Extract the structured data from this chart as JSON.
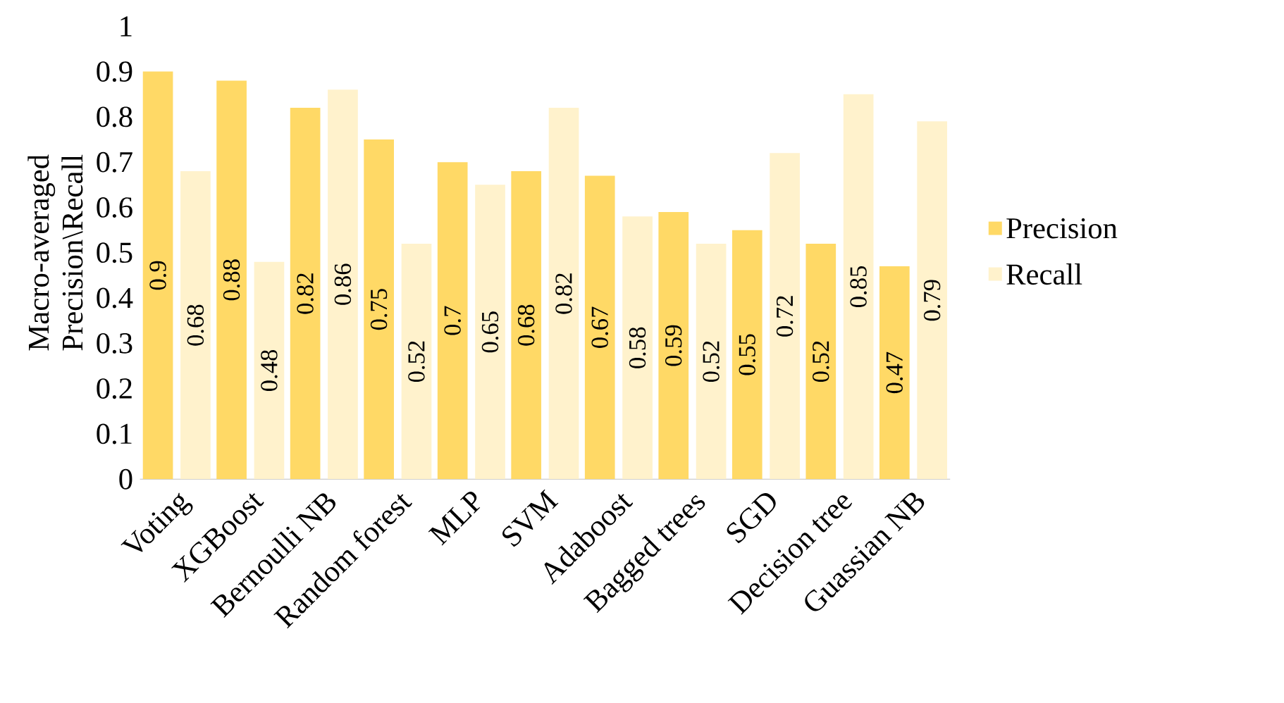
{
  "chart_data": {
    "type": "bar",
    "ylabel": "Macro-averaged Precision\\Recall",
    "categories": [
      "Voting",
      "XGBoost",
      "Bernoulli NB",
      "Random forest",
      "MLP",
      "SVM",
      "Adaboost",
      "Bagged trees",
      "SGD",
      "Decision tree",
      "Guassian NB"
    ],
    "series": [
      {
        "name": "Precision",
        "color": "#ffd966",
        "values": [
          0.9,
          0.88,
          0.82,
          0.75,
          0.7,
          0.68,
          0.67,
          0.59,
          0.55,
          0.52,
          0.47
        ],
        "value_labels": [
          "0.9",
          "0.88",
          "0.82",
          "0.75",
          "0.7",
          "0.68",
          "0.67",
          "0.59",
          "0.55",
          "0.52",
          "0.47"
        ]
      },
      {
        "name": "Recall",
        "color": "#fff2cc",
        "values": [
          0.68,
          0.48,
          0.86,
          0.52,
          0.65,
          0.82,
          0.58,
          0.52,
          0.72,
          0.85,
          0.79
        ],
        "value_labels": [
          "0.68",
          "0.48",
          "0.86",
          "0.52",
          "0.65",
          "0.82",
          "0.58",
          "0.52",
          "0.72",
          "0.85",
          "0.79"
        ]
      }
    ],
    "ylim": [
      0,
      1
    ],
    "yticks": [
      0,
      0.1,
      0.2,
      0.3,
      0.4,
      0.5,
      0.6,
      0.7,
      0.8,
      0.9,
      1
    ],
    "legend": "right",
    "grid": false
  }
}
